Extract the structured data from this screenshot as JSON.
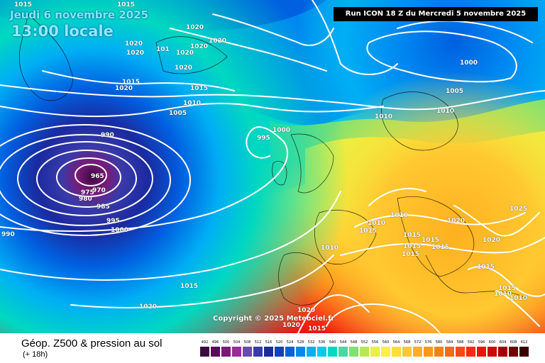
{
  "header": {
    "date": "Jeudi 6 novembre 2025",
    "local_time": "13:00 locale",
    "run_info": "Run ICON 18 Z du Mercredi 5 novembre 2025"
  },
  "copyright": "Copyright © 2025 Meteociel.fr",
  "footer": {
    "title": "Géop. Z500 & pression au sol",
    "subtitle": "(+ 18h)"
  },
  "legend": {
    "ticks": [
      "492",
      "496",
      "500",
      "504",
      "508",
      "512",
      "516",
      "520",
      "524",
      "528",
      "532",
      "536",
      "540",
      "544",
      "548",
      "552",
      "556",
      "560",
      "564",
      "568",
      "572",
      "576",
      "580",
      "584",
      "588",
      "592",
      "596",
      "600",
      "604",
      "608",
      "612"
    ],
    "colors": [
      "#3a0a3f",
      "#5a0a5a",
      "#7a1a78",
      "#9a2a96",
      "#6a4ab0",
      "#3a3aa8",
      "#1a2aa0",
      "#1040c0",
      "#0060e0",
      "#0088f0",
      "#00aef5",
      "#00cce8",
      "#00d8c0",
      "#40dca0",
      "#80e070",
      "#b8e850",
      "#e8f040",
      "#fff040",
      "#ffe030",
      "#ffc830",
      "#ffb020",
      "#ff9818",
      "#ff8010",
      "#ff6810",
      "#ff4810",
      "#ff2810",
      "#f01010",
      "#d00808",
      "#a00000",
      "#700000",
      "#3a0000"
    ]
  },
  "isobar_labels": [
    {
      "text": "1015",
      "cls": "l01"
    },
    {
      "text": "1015",
      "cls": "l02"
    },
    {
      "text": "1020",
      "cls": "l03"
    },
    {
      "text": "1020",
      "cls": "l04"
    },
    {
      "text": "1020",
      "cls": "l05"
    },
    {
      "text": "101",
      "cls": "l06"
    },
    {
      "text": "1020",
      "cls": "l07"
    },
    {
      "text": "1020",
      "cls": "l08"
    },
    {
      "text": "1020",
      "cls": "l09"
    },
    {
      "text": "1020",
      "cls": "l10"
    },
    {
      "text": "1015",
      "cls": "l11"
    },
    {
      "text": "1020",
      "cls": "l12"
    },
    {
      "text": "1015",
      "cls": "l13"
    },
    {
      "text": "1010",
      "cls": "l14"
    },
    {
      "text": "1005",
      "cls": "l15"
    },
    {
      "text": "990",
      "cls": "l16"
    },
    {
      "text": "995",
      "cls": "l17"
    },
    {
      "text": "1000",
      "cls": "l18"
    },
    {
      "text": "965",
      "cls": "l19"
    },
    {
      "text": "975",
      "cls": "l20"
    },
    {
      "text": "970",
      "cls": "l21"
    },
    {
      "text": "980",
      "cls": "l22"
    },
    {
      "text": "985",
      "cls": "l23"
    },
    {
      "text": "995",
      "cls": "l24"
    },
    {
      "text": "1000",
      "cls": "l25"
    },
    {
      "text": "990",
      "cls": "l26"
    },
    {
      "text": "1015",
      "cls": "l27"
    },
    {
      "text": "1020",
      "cls": "l28"
    },
    {
      "text": "1020",
      "cls": "l29"
    },
    {
      "text": "1020",
      "cls": "l30"
    },
    {
      "text": "1015",
      "cls": "l31"
    },
    {
      "text": "1010",
      "cls": "l32"
    },
    {
      "text": "1000",
      "cls": "l33"
    },
    {
      "text": "1005",
      "cls": "l34"
    },
    {
      "text": "1010",
      "cls": "l35"
    },
    {
      "text": "1010",
      "cls": "l36"
    },
    {
      "text": "1025",
      "cls": "l37"
    },
    {
      "text": "1020",
      "cls": "l38"
    },
    {
      "text": "1010",
      "cls": "l39"
    },
    {
      "text": "1010",
      "cls": "l40"
    },
    {
      "text": "1015",
      "cls": "l41"
    },
    {
      "text": "1015",
      "cls": "l42"
    },
    {
      "text": "1015",
      "cls": "l43"
    },
    {
      "text": "1020",
      "cls": "l44"
    },
    {
      "text": "1015",
      "cls": "l45"
    },
    {
      "text": "1015",
      "cls": "l46"
    },
    {
      "text": "1015",
      "cls": "l47"
    },
    {
      "text": "1015",
      "cls": "l48"
    },
    {
      "text": "1015",
      "cls": "l49"
    },
    {
      "text": "1010",
      "cls": "l50"
    },
    {
      "text": "1010",
      "cls": "l51"
    }
  ]
}
